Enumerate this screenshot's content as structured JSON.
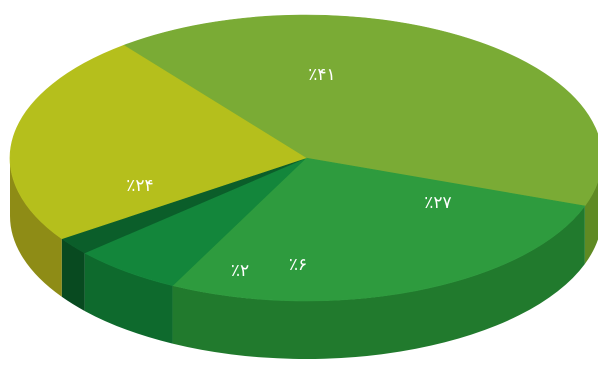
{
  "chart_data": {
    "type": "pie",
    "title": "",
    "style": "3d",
    "slices": [
      {
        "label": "٪۴۱",
        "value": 41,
        "color": "#7aab35",
        "side": "#5f8a23"
      },
      {
        "label": "٪۲۷",
        "value": 27,
        "color": "#2e9b3e",
        "side": "#217a2d"
      },
      {
        "label": "٪۶",
        "value": 6,
        "color": "#13863b",
        "side": "#0e6a2d"
      },
      {
        "label": "٪۲",
        "value": 2,
        "color": "#0b5e2a",
        "side": "#084a20"
      },
      {
        "label": "٪۲۴",
        "value": 24,
        "color": "#b5bf1c",
        "side": "#8e8c16"
      }
    ]
  }
}
